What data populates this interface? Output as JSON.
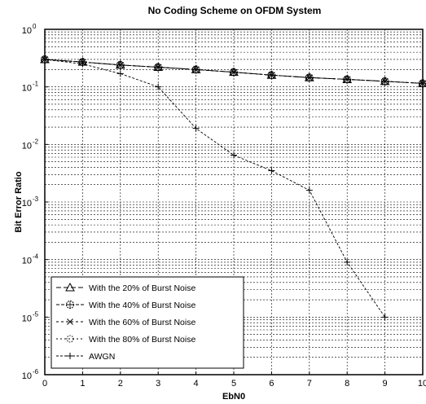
{
  "chart_data": {
    "type": "line",
    "title": "No Coding Scheme on OFDM System",
    "xlabel": "EbN0",
    "ylabel": "Bit Error Ratio",
    "xlim": [
      0,
      10
    ],
    "ylim": [
      1e-06,
      1
    ],
    "yscale": "log",
    "grid": true,
    "legend_position": "bottom-left",
    "x_ticks": [
      "0",
      "1",
      "2",
      "3",
      "4",
      "5",
      "6",
      "7",
      "8",
      "9",
      "10"
    ],
    "y_ticks": [
      {
        "base": "10",
        "exp": "0"
      },
      {
        "base": "10",
        "exp": "-1"
      },
      {
        "base": "10",
        "exp": "-2"
      },
      {
        "base": "10",
        "exp": "-3"
      },
      {
        "base": "10",
        "exp": "-4"
      },
      {
        "base": "10",
        "exp": "-5"
      },
      {
        "base": "10",
        "exp": "-6"
      }
    ],
    "x": [
      0,
      1,
      2,
      3,
      4,
      5,
      6,
      7,
      8,
      9,
      10
    ],
    "series": [
      {
        "name": "With the 20% of Burst Noise",
        "marker": "triangle",
        "values": [
          0.3,
          0.27,
          0.24,
          0.22,
          0.2,
          0.18,
          0.16,
          0.145,
          0.135,
          0.125,
          0.115
        ]
      },
      {
        "name": "With the 40% of Burst Noise",
        "marker": "circle-plus",
        "values": [
          0.3,
          0.27,
          0.24,
          0.22,
          0.2,
          0.18,
          0.16,
          0.145,
          0.135,
          0.125,
          0.115
        ]
      },
      {
        "name": "With the 60% of Burst Noise",
        "marker": "x",
        "values": [
          0.3,
          0.27,
          0.24,
          0.22,
          0.2,
          0.18,
          0.16,
          0.145,
          0.135,
          0.125,
          0.115
        ]
      },
      {
        "name": "With the 80% of Burst Noise",
        "marker": "dot",
        "values": [
          0.3,
          0.27,
          0.24,
          0.22,
          0.2,
          0.18,
          0.16,
          0.145,
          0.135,
          0.125,
          0.115
        ]
      },
      {
        "name": "AWGN",
        "marker": "plus",
        "x": [
          0,
          1,
          2,
          3,
          4,
          5,
          6,
          7,
          8,
          9
        ],
        "values": [
          0.3,
          0.25,
          0.17,
          0.1,
          0.019,
          0.0065,
          0.0035,
          0.0016,
          9e-05,
          1e-05
        ]
      }
    ]
  }
}
